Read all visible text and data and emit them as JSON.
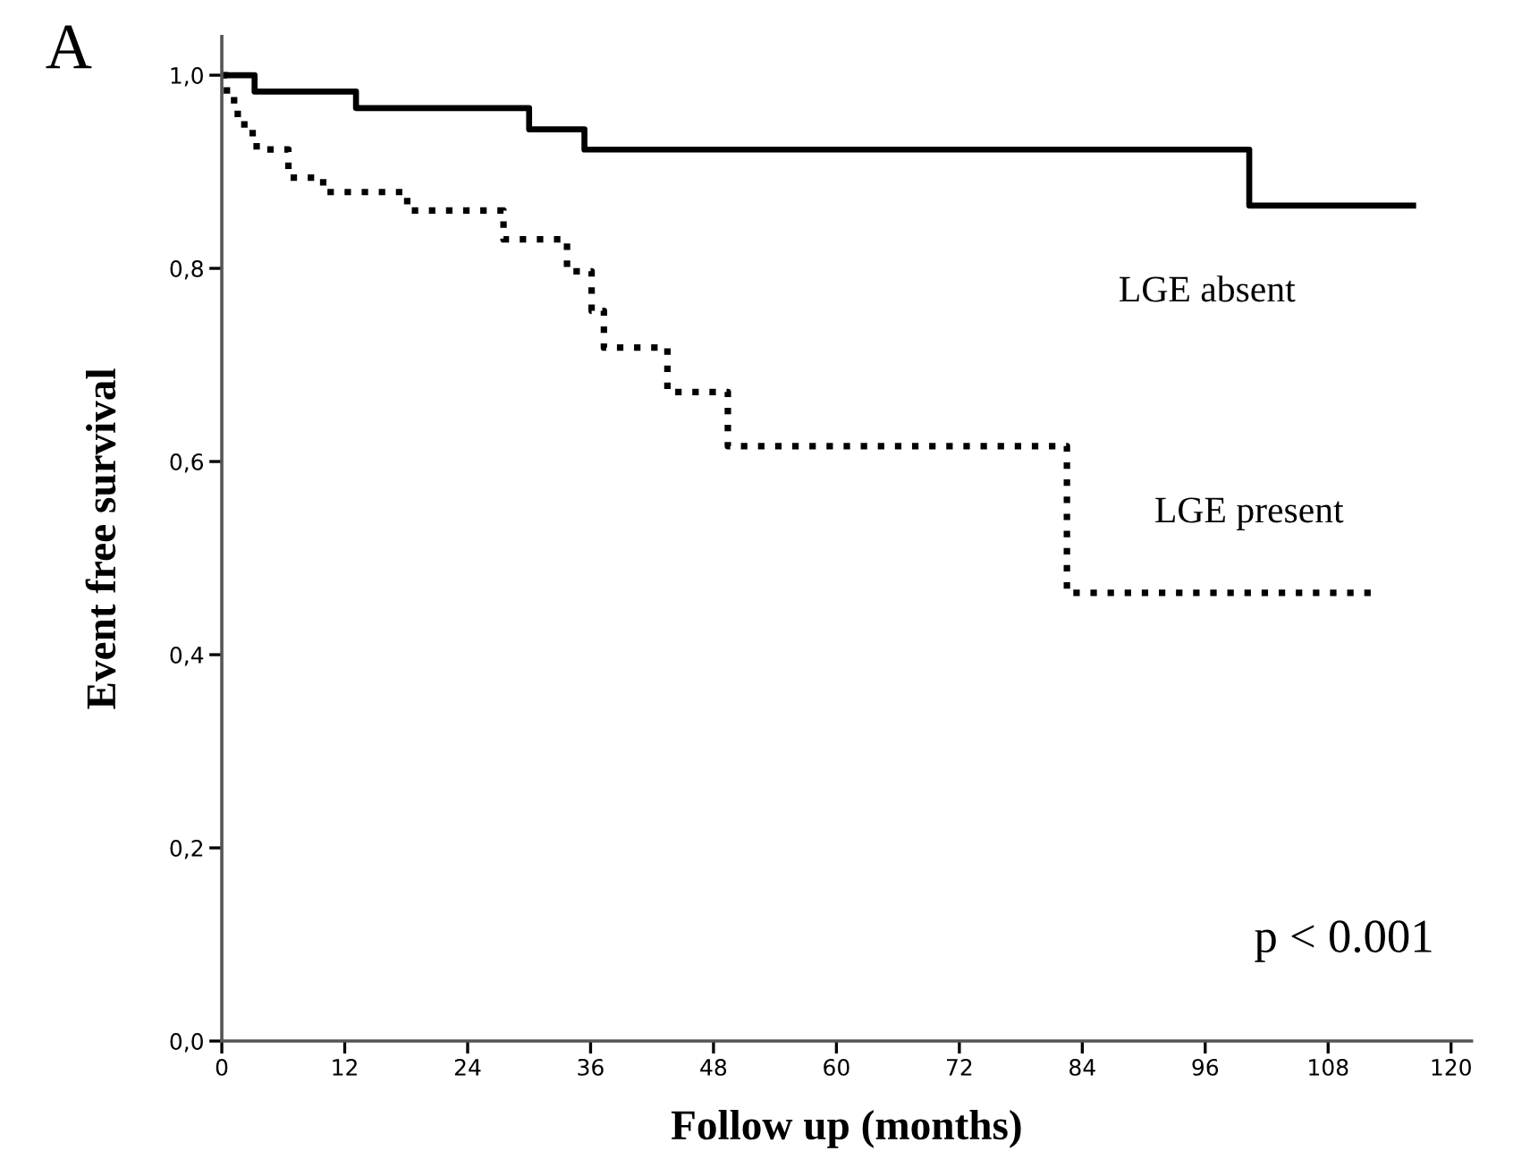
{
  "chart_data": {
    "type": "step",
    "title": "A",
    "xlabel": "Follow up (months)",
    "ylabel": "Event free survival",
    "series": [
      {
        "name": "LGE absent",
        "color": "#000000",
        "line_style": "solid",
        "x": [
          0,
          3.2,
          13.1,
          30.0,
          35.4,
          100.3,
          116.3
        ],
        "values": [
          1.0,
          0.983,
          0.966,
          0.944,
          0.923,
          0.865,
          0.865
        ]
      },
      {
        "name": "LGE present",
        "color": "#000000",
        "line_style": "dotted",
        "x": [
          0,
          0.5,
          1.2,
          2.2,
          3.4,
          6.5,
          9.9,
          18.1,
          27.5,
          33.7,
          36.1,
          37.3,
          43.5,
          49.4,
          82.5,
          112.4
        ],
        "values": [
          1.0,
          0.98,
          0.96,
          0.94,
          0.923,
          0.894,
          0.879,
          0.86,
          0.83,
          0.797,
          0.756,
          0.718,
          0.672,
          0.616,
          0.464,
          0.464
        ]
      }
    ],
    "annotations": [
      "p < 0.001"
    ],
    "xlim": [
      0,
      122
    ],
    "xticks": [
      0,
      12,
      24,
      36,
      48,
      60,
      72,
      84,
      96,
      108,
      120
    ],
    "ylim": [
      0,
      1.04
    ],
    "yticks": [
      {
        "value": 0,
        "label": "0,0"
      },
      {
        "value": 0.2,
        "label": "0,2"
      },
      {
        "value": 0.4,
        "label": "0,4"
      },
      {
        "value": 0.6,
        "label": "0,6"
      },
      {
        "value": 0.8,
        "label": "0,8"
      },
      {
        "value": 1.0,
        "label": "1,0"
      }
    ],
    "grid": false,
    "legend": false
  }
}
